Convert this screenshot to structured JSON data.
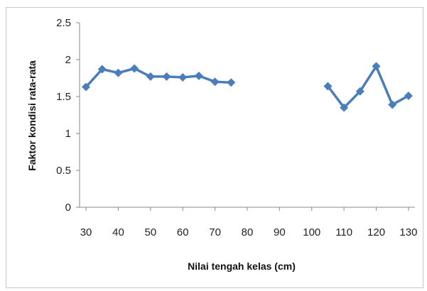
{
  "chart_data": {
    "type": "line",
    "xlabel": "Nilai tengah kelas (cm)",
    "ylabel": "Faktor kondisi rata-rata",
    "x_categories": [
      "30",
      "40",
      "50",
      "60",
      "70",
      "80",
      "90",
      "100",
      "110",
      "120",
      "130"
    ],
    "y_ticks": [
      "0",
      "0.5",
      "1",
      "1.5",
      "2",
      "2.5"
    ],
    "ylim": [
      0,
      2.5
    ],
    "grid": false,
    "legend": "none",
    "marker": "diamond",
    "color": "#4a7ebb",
    "series": [
      {
        "points": [
          {
            "x": 30,
            "y": 1.63
          },
          {
            "x": 35,
            "y": 1.87
          },
          {
            "x": 40,
            "y": 1.82
          },
          {
            "x": 45,
            "y": 1.88
          },
          {
            "x": 50,
            "y": 1.77
          },
          {
            "x": 55,
            "y": 1.77
          },
          {
            "x": 60,
            "y": 1.76
          },
          {
            "x": 65,
            "y": 1.78
          },
          {
            "x": 70,
            "y": 1.7
          },
          {
            "x": 75,
            "y": 1.69
          }
        ]
      },
      {
        "points": [
          {
            "x": 105,
            "y": 1.64
          },
          {
            "x": 110,
            "y": 1.35
          },
          {
            "x": 115,
            "y": 1.57
          },
          {
            "x": 120,
            "y": 1.91
          },
          {
            "x": 125,
            "y": 1.39
          },
          {
            "x": 130,
            "y": 1.51
          }
        ]
      }
    ]
  }
}
